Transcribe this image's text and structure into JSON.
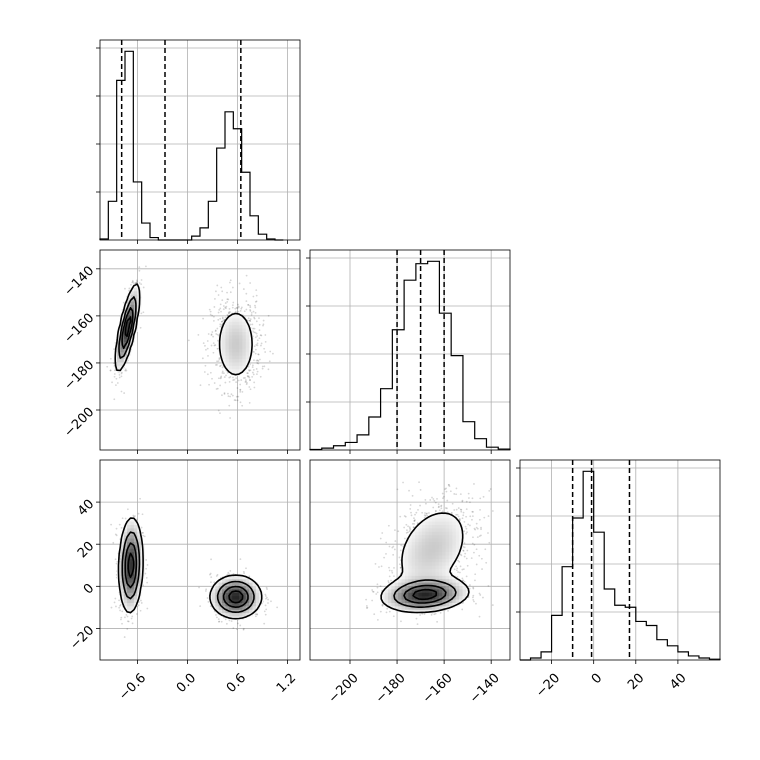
{
  "chart_data": {
    "type": "corner",
    "title": "",
    "parameters": [
      "",
      "",
      ""
    ],
    "grid": true,
    "axes": {
      "p1": {
        "range": [
          -1.05,
          1.35
        ],
        "ticks": [
          -0.6,
          0.0,
          0.6,
          1.2
        ],
        "tick_labels": [
          "−0.6",
          "0.0",
          "0.6",
          "1.2"
        ]
      },
      "p2": {
        "range": [
          -217,
          -132
        ],
        "ticks": [
          -200,
          -180,
          -160,
          -140
        ],
        "tick_labels": [
          "−200",
          "−180",
          "−160",
          "−140"
        ]
      },
      "p3": {
        "range": [
          -35,
          60
        ],
        "ticks": [
          -20,
          0,
          20,
          40
        ],
        "tick_labels": [
          "−20",
          "0",
          "20",
          "40"
        ]
      }
    },
    "quantiles": {
      "p1": [
        -0.79,
        -0.27,
        0.64
      ],
      "p2": [
        -180,
        -170,
        -160
      ],
      "p3": [
        -10,
        -1,
        17
      ]
    },
    "histograms": {
      "p1": {
        "bin_edges": [
          -1.05,
          -0.95,
          -0.85,
          -0.75,
          -0.65,
          -0.55,
          -0.45,
          -0.35,
          -0.25,
          -0.15,
          -0.05,
          0.05,
          0.15,
          0.25,
          0.35,
          0.45,
          0.55,
          0.65,
          0.75,
          0.85,
          0.95,
          1.05,
          1.15
        ],
        "counts": [
          2,
          80,
          330,
          390,
          120,
          35,
          5,
          0,
          0,
          0,
          0,
          8,
          25,
          80,
          190,
          265,
          230,
          140,
          50,
          12,
          2,
          0
        ]
      },
      "p2": {
        "bin_edges": [
          -217,
          -212,
          -207,
          -202,
          -197,
          -192,
          -187,
          -182,
          -177,
          -172,
          -167,
          -162,
          -157,
          -152,
          -147,
          -142,
          -137,
          -132
        ],
        "counts": [
          1,
          4,
          9,
          16,
          32,
          70,
          130,
          255,
          360,
          395,
          400,
          290,
          200,
          60,
          24,
          6,
          2
        ]
      },
      "p3": {
        "bin_edges": [
          -35,
          -30,
          -25,
          -20,
          -15,
          -10,
          -5,
          0,
          5,
          10,
          15,
          20,
          25,
          30,
          35,
          40,
          45,
          50,
          55,
          60
        ],
        "counts": [
          0,
          5,
          20,
          110,
          230,
          350,
          465,
          315,
          175,
          135,
          130,
          95,
          85,
          50,
          35,
          20,
          10,
          5,
          2
        ]
      }
    },
    "joint": [
      {
        "x": "p1",
        "y": "p2",
        "modes": [
          {
            "mx": -0.72,
            "my": -165,
            "sx": 0.07,
            "sy": 9,
            "rho": 0.75,
            "weight": 0.5
          },
          {
            "mx": 0.58,
            "my": -172,
            "sx": 0.15,
            "sy": 10,
            "rho": 0.0,
            "weight": 0.5
          }
        ]
      },
      {
        "x": "p1",
        "y": "p3",
        "modes": [
          {
            "mx": -0.68,
            "my": 10,
            "sx": 0.07,
            "sy": 11,
            "rho": 0.1,
            "weight": 0.5
          },
          {
            "mx": 0.58,
            "my": -5,
            "sx": 0.15,
            "sy": 5,
            "rho": 0.0,
            "weight": 0.5
          }
        ]
      },
      {
        "x": "p2",
        "y": "p3",
        "modes": [
          {
            "mx": -168,
            "my": -4,
            "sx": 9,
            "sy": 4,
            "rho": 0.15,
            "weight": 0.5
          },
          {
            "mx": -165,
            "my": 18,
            "sx": 10,
            "sy": 13,
            "rho": 0.35,
            "weight": 0.5
          }
        ]
      }
    ]
  }
}
